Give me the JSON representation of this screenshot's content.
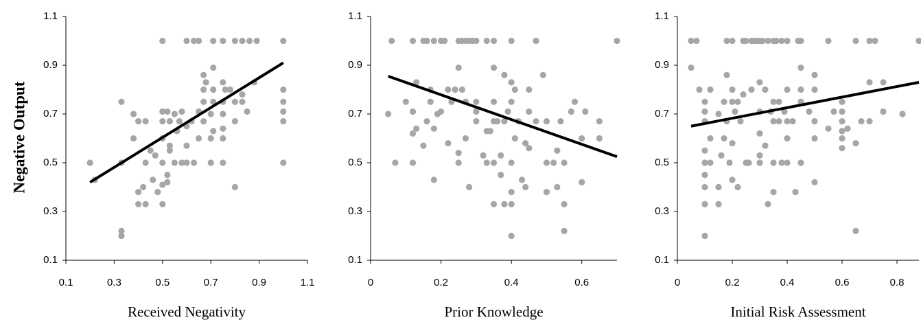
{
  "chart_data": [
    {
      "type": "scatter",
      "ylabel": "Negative Output",
      "xlabel": "Received Negativity",
      "color": "#a6a6a6",
      "trend_color": "#000000",
      "xlim": [
        0.1,
        1.1
      ],
      "xticks": [
        0.1,
        0.3,
        0.5,
        0.7,
        0.9,
        1.1
      ],
      "ylim": [
        0.1,
        1.1
      ],
      "yticks": [
        0.1,
        0.3,
        0.5,
        0.7,
        0.9,
        1.1
      ],
      "x": [
        0.2,
        0.22,
        0.33,
        0.33,
        0.33,
        0.33,
        0.38,
        0.38,
        0.4,
        0.4,
        0.4,
        0.42,
        0.43,
        0.43,
        0.43,
        0.45,
        0.46,
        0.47,
        0.48,
        0.5,
        0.5,
        0.5,
        0.5,
        0.5,
        0.5,
        0.5,
        0.52,
        0.52,
        0.52,
        0.53,
        0.53,
        0.53,
        0.55,
        0.55,
        0.56,
        0.57,
        0.58,
        0.58,
        0.6,
        0.6,
        0.6,
        0.6,
        0.62,
        0.63,
        0.63,
        0.65,
        0.65,
        0.65,
        0.67,
        0.67,
        0.67,
        0.67,
        0.68,
        0.7,
        0.7,
        0.7,
        0.71,
        0.71,
        0.71,
        0.71,
        0.71,
        0.75,
        0.75,
        0.75,
        0.75,
        0.75,
        0.75,
        0.75,
        0.76,
        0.78,
        0.8,
        0.8,
        0.8,
        0.8,
        0.83,
        0.83,
        0.83,
        0.85,
        0.86,
        0.88,
        0.89,
        1.0,
        1.0,
        1.0,
        1.0,
        1.0,
        1.0
      ],
      "y": [
        0.5,
        0.43,
        0.75,
        0.5,
        0.22,
        0.2,
        0.7,
        0.6,
        0.67,
        0.38,
        0.33,
        0.4,
        0.67,
        0.5,
        0.33,
        0.55,
        0.43,
        0.53,
        0.38,
        0.33,
        0.41,
        0.5,
        0.6,
        0.67,
        0.71,
        1.0,
        0.71,
        0.45,
        0.42,
        0.55,
        0.57,
        0.67,
        0.5,
        0.7,
        0.63,
        0.67,
        0.5,
        0.71,
        0.57,
        0.65,
        0.5,
        1.0,
        0.67,
        0.5,
        1.0,
        0.6,
        0.71,
        1.0,
        0.67,
        0.75,
        0.8,
        0.86,
        0.83,
        0.5,
        0.6,
        0.7,
        0.89,
        0.8,
        0.75,
        1.0,
        0.63,
        0.5,
        0.6,
        0.64,
        0.7,
        0.75,
        0.83,
        1.0,
        0.8,
        0.8,
        0.4,
        0.67,
        0.75,
        1.0,
        0.75,
        0.78,
        1.0,
        0.71,
        1.0,
        0.83,
        1.0,
        0.5,
        0.67,
        0.71,
        0.75,
        0.8,
        1.0
      ],
      "trend": {
        "x": [
          0.2,
          1.0
        ],
        "y": [
          0.42,
          0.91
        ]
      }
    },
    {
      "type": "scatter",
      "xlabel": "Prior Knowledge",
      "color": "#a6a6a6",
      "trend_color": "#000000",
      "xlim": [
        0,
        0.7
      ],
      "xticks": [
        0,
        0.2,
        0.4,
        0.6
      ],
      "ylim": [
        0.1,
        1.1
      ],
      "yticks": [
        0.1,
        0.3,
        0.5,
        0.7,
        0.9,
        1.1
      ],
      "x": [
        0.05,
        0.06,
        0.07,
        0.1,
        0.12,
        0.12,
        0.12,
        0.12,
        0.13,
        0.13,
        0.15,
        0.15,
        0.16,
        0.16,
        0.17,
        0.17,
        0.18,
        0.18,
        0.18,
        0.19,
        0.2,
        0.2,
        0.21,
        0.22,
        0.22,
        0.23,
        0.24,
        0.25,
        0.25,
        0.25,
        0.25,
        0.26,
        0.26,
        0.27,
        0.27,
        0.27,
        0.28,
        0.28,
        0.29,
        0.3,
        0.3,
        0.3,
        0.3,
        0.32,
        0.33,
        0.33,
        0.33,
        0.34,
        0.35,
        0.35,
        0.35,
        0.35,
        0.35,
        0.35,
        0.36,
        0.37,
        0.37,
        0.38,
        0.38,
        0.38,
        0.39,
        0.4,
        0.4,
        0.4,
        0.4,
        0.4,
        0.4,
        0.4,
        0.41,
        0.41,
        0.42,
        0.43,
        0.44,
        0.44,
        0.45,
        0.45,
        0.45,
        0.47,
        0.47,
        0.49,
        0.5,
        0.5,
        0.5,
        0.52,
        0.53,
        0.53,
        0.54,
        0.55,
        0.55,
        0.55,
        0.57,
        0.58,
        0.6,
        0.6,
        0.61,
        0.65,
        0.65,
        0.7
      ],
      "y": [
        0.7,
        1.0,
        0.5,
        0.75,
        1.0,
        0.71,
        0.62,
        0.5,
        0.64,
        0.83,
        1.0,
        0.57,
        1.0,
        0.67,
        0.8,
        0.75,
        1.0,
        0.64,
        0.43,
        0.7,
        1.0,
        0.71,
        1.0,
        0.8,
        0.58,
        0.75,
        0.8,
        1.0,
        0.89,
        0.54,
        0.5,
        1.0,
        0.8,
        1.0,
        0.75,
        0.6,
        1.0,
        0.4,
        1.0,
        1.0,
        0.75,
        0.71,
        0.67,
        0.53,
        1.0,
        0.63,
        0.5,
        0.63,
        1.0,
        0.89,
        0.75,
        0.67,
        0.5,
        0.33,
        0.67,
        0.53,
        0.45,
        0.86,
        0.67,
        0.33,
        0.71,
        1.0,
        0.83,
        0.75,
        0.5,
        0.38,
        0.33,
        0.2,
        0.6,
        0.8,
        0.67,
        0.43,
        0.4,
        0.58,
        0.8,
        0.71,
        0.56,
        1.0,
        0.67,
        0.86,
        0.5,
        0.38,
        0.67,
        0.5,
        0.55,
        0.4,
        0.67,
        0.5,
        0.33,
        0.22,
        0.71,
        0.75,
        0.6,
        0.42,
        0.71,
        0.67,
        0.6,
        1.0
      ],
      "trend": {
        "x": [
          0.05,
          0.7
        ],
        "y": [
          0.855,
          0.525
        ]
      }
    },
    {
      "type": "scatter",
      "xlabel": "Initial Risk Assessment",
      "color": "#a6a6a6",
      "trend_color": "#000000",
      "xlim": [
        0,
        0.88
      ],
      "xticks": [
        0,
        0.2,
        0.4,
        0.6,
        0.8
      ],
      "ylim": [
        0.1,
        1.1
      ],
      "yticks": [
        0.1,
        0.3,
        0.5,
        0.7,
        0.9,
        1.1
      ],
      "x": [
        0.05,
        0.05,
        0.07,
        0.08,
        0.1,
        0.1,
        0.1,
        0.1,
        0.1,
        0.1,
        0.1,
        0.1,
        0.1,
        0.12,
        0.12,
        0.12,
        0.15,
        0.15,
        0.15,
        0.16,
        0.17,
        0.17,
        0.18,
        0.18,
        0.18,
        0.19,
        0.2,
        0.2,
        0.2,
        0.2,
        0.2,
        0.21,
        0.22,
        0.22,
        0.23,
        0.24,
        0.24,
        0.25,
        0.25,
        0.26,
        0.27,
        0.27,
        0.28,
        0.29,
        0.3,
        0.3,
        0.3,
        0.3,
        0.3,
        0.3,
        0.31,
        0.32,
        0.32,
        0.33,
        0.33,
        0.34,
        0.35,
        0.35,
        0.35,
        0.35,
        0.35,
        0.36,
        0.37,
        0.37,
        0.38,
        0.38,
        0.39,
        0.4,
        0.4,
        0.4,
        0.4,
        0.4,
        0.42,
        0.43,
        0.44,
        0.45,
        0.45,
        0.45,
        0.45,
        0.45,
        0.48,
        0.5,
        0.5,
        0.5,
        0.5,
        0.5,
        0.55,
        0.55,
        0.57,
        0.6,
        0.6,
        0.6,
        0.6,
        0.6,
        0.6,
        0.62,
        0.65,
        0.65,
        0.65,
        0.67,
        0.7,
        0.7,
        0.7,
        0.72,
        0.75,
        0.75,
        0.82,
        0.88
      ],
      "y": [
        1.0,
        0.89,
        1.0,
        0.8,
        0.75,
        0.71,
        0.67,
        0.55,
        0.5,
        0.45,
        0.4,
        0.33,
        0.2,
        0.8,
        0.6,
        0.5,
        0.7,
        0.4,
        0.33,
        0.53,
        0.6,
        0.75,
        1.0,
        0.86,
        0.67,
        0.5,
        1.0,
        0.8,
        0.75,
        0.58,
        0.43,
        0.71,
        0.75,
        0.4,
        0.67,
        1.0,
        0.78,
        1.0,
        0.5,
        0.5,
        1.0,
        0.8,
        1.0,
        1.0,
        1.0,
        0.83,
        0.71,
        0.62,
        0.53,
        0.5,
        1.0,
        0.8,
        0.57,
        1.0,
        0.33,
        0.71,
        1.0,
        0.75,
        0.67,
        0.5,
        0.38,
        1.0,
        0.75,
        0.67,
        1.0,
        0.5,
        0.71,
        1.0,
        0.8,
        0.67,
        0.6,
        0.5,
        0.67,
        0.38,
        1.0,
        1.0,
        0.89,
        0.8,
        0.75,
        0.5,
        0.71,
        0.86,
        0.8,
        0.67,
        0.6,
        0.42,
        1.0,
        0.64,
        0.71,
        0.75,
        0.71,
        0.67,
        0.63,
        0.6,
        0.56,
        0.64,
        1.0,
        0.58,
        0.22,
        0.67,
        1.0,
        0.83,
        0.67,
        1.0,
        0.83,
        0.71,
        0.7,
        1.0
      ],
      "trend": {
        "x": [
          0.05,
          0.88
        ],
        "y": [
          0.65,
          0.83
        ]
      }
    }
  ]
}
